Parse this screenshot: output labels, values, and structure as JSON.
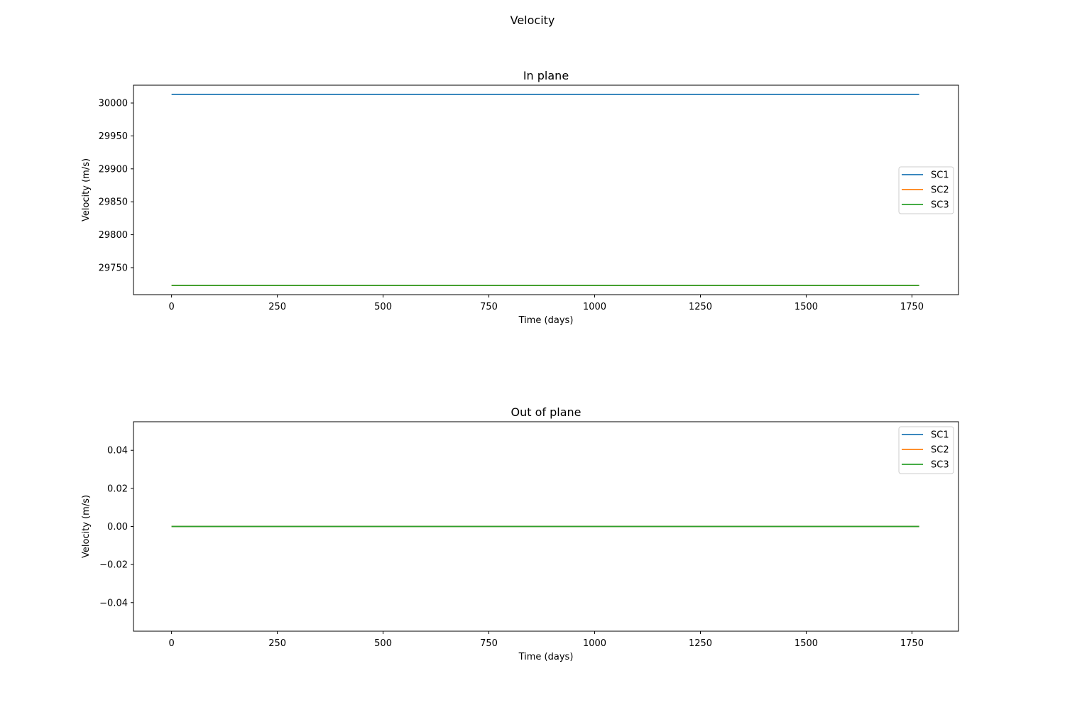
{
  "figure_title": "Velocity",
  "colors": {
    "SC1": "#1f77b4",
    "SC2": "#ff7f0e",
    "SC3": "#2ca02c"
  },
  "chart_data": [
    {
      "type": "line",
      "title": "In plane",
      "xlabel": "Time (days)",
      "ylabel": "Velocity (m/s)",
      "xlim": [
        -90,
        1860
      ],
      "ylim": [
        29709,
        30027
      ],
      "xticks": [
        0,
        250,
        500,
        750,
        1000,
        1250,
        1500,
        1750
      ],
      "xtick_labels": [
        "0",
        "250",
        "500",
        "750",
        "1000",
        "1250",
        "1500",
        "1750"
      ],
      "yticks": [
        29750,
        29800,
        29850,
        29900,
        29950,
        30000
      ],
      "ytick_labels": [
        "29750",
        "29800",
        "29850",
        "29900",
        "29950",
        "30000"
      ],
      "grid": false,
      "legend": "center-right",
      "series": [
        {
          "name": "SC1",
          "color": "#1f77b4",
          "x": [
            0,
            1767
          ],
          "y": [
            30013,
            30013
          ]
        },
        {
          "name": "SC2",
          "color": "#ff7f0e",
          "x": [
            0,
            1767
          ],
          "y": [
            29723,
            29723
          ]
        },
        {
          "name": "SC3",
          "color": "#2ca02c",
          "x": [
            0,
            1767
          ],
          "y": [
            29723,
            29723
          ]
        }
      ]
    },
    {
      "type": "line",
      "title": "Out of plane",
      "xlabel": "Time (days)",
      "ylabel": "Velocity (m/s)",
      "xlim": [
        -90,
        1860
      ],
      "ylim": [
        -0.055,
        0.055
      ],
      "xticks": [
        0,
        250,
        500,
        750,
        1000,
        1250,
        1500,
        1750
      ],
      "xtick_labels": [
        "0",
        "250",
        "500",
        "750",
        "1000",
        "1250",
        "1500",
        "1750"
      ],
      "yticks": [
        -0.04,
        -0.02,
        0.0,
        0.02,
        0.04
      ],
      "ytick_labels": [
        "−0.04",
        "−0.02",
        "0.00",
        "0.02",
        "0.04"
      ],
      "grid": false,
      "legend": "upper-right",
      "series": [
        {
          "name": "SC1",
          "color": "#1f77b4",
          "x": [
            0,
            1767
          ],
          "y": [
            0,
            0
          ]
        },
        {
          "name": "SC2",
          "color": "#ff7f0e",
          "x": [
            0,
            1767
          ],
          "y": [
            0,
            0
          ]
        },
        {
          "name": "SC3",
          "color": "#2ca02c",
          "x": [
            0,
            1767
          ],
          "y": [
            0,
            0
          ]
        }
      ]
    }
  ]
}
